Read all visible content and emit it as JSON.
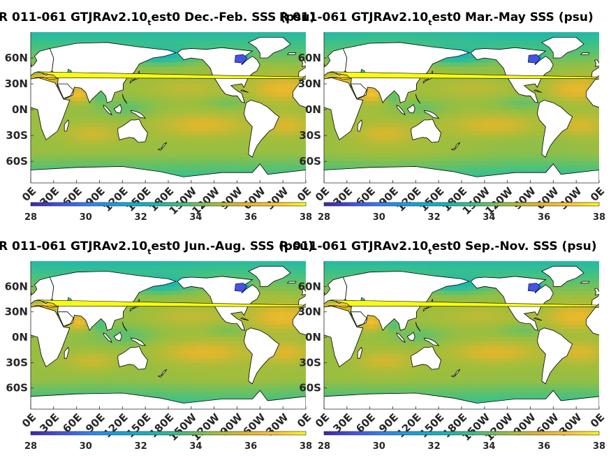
{
  "chart_data": [
    {
      "type": "heatmap",
      "title_left": "R 011-061 GTJRAv2.10",
      "title_sub": "t",
      "title_right": "est0 Dec.-Feb. SSS (psu)",
      "lat_ticks": [
        "60N",
        "30N",
        "0N",
        "30S",
        "60S"
      ],
      "lon_ticks": [
        "0E",
        "30E",
        "60E",
        "90E",
        "120E",
        "150E",
        "180E",
        "150W",
        "120W",
        "90W",
        "60W",
        "30W",
        "0E"
      ],
      "colorbar": {
        "ticks": [
          "28",
          "30",
          "32",
          "34",
          "36",
          "38"
        ],
        "range": [
          28,
          38
        ]
      },
      "season": "DJF"
    },
    {
      "type": "heatmap",
      "title_left": "R 011-061 GTJRAv2.10",
      "title_sub": "t",
      "title_right": "est0 Mar.-May SSS (psu)",
      "lat_ticks": [
        "60N",
        "30N",
        "0N",
        "30S",
        "60S"
      ],
      "lon_ticks": [
        "0E",
        "30E",
        "60E",
        "90E",
        "120E",
        "150E",
        "180E",
        "150W",
        "120W",
        "90W",
        "60W",
        "30W",
        "0E"
      ],
      "colorbar": {
        "ticks": [
          "28",
          "30",
          "32",
          "34",
          "36",
          "38"
        ],
        "range": [
          28,
          38
        ]
      },
      "season": "MAM"
    },
    {
      "type": "heatmap",
      "title_left": "R 011-061 GTJRAv2.10",
      "title_sub": "t",
      "title_right": "est0 Jun.-Aug. SSS (psu)",
      "lat_ticks": [
        "60N",
        "30N",
        "0N",
        "30S",
        "60S"
      ],
      "lon_ticks": [
        "0E",
        "30E",
        "60E",
        "90E",
        "120E",
        "150E",
        "180E",
        "150W",
        "120W",
        "90W",
        "60W",
        "30W",
        "0E"
      ],
      "colorbar": {
        "ticks": [
          "28",
          "30",
          "32",
          "34",
          "36",
          "38"
        ],
        "range": [
          28,
          38
        ]
      },
      "season": "JJA"
    },
    {
      "type": "heatmap",
      "title_left": "R 011-061 GTJRAv2.10",
      "title_sub": "t",
      "title_right": "est0 Sep.-Nov. SSS (psu)",
      "lat_ticks": [
        "60N",
        "30N",
        "0N",
        "30S",
        "60S"
      ],
      "lon_ticks": [
        "0E",
        "30E",
        "60E",
        "90E",
        "120E",
        "150E",
        "180E",
        "150W",
        "120W",
        "90W",
        "60W",
        "30W",
        "0E"
      ],
      "colorbar": {
        "ticks": [
          "28",
          "30",
          "32",
          "34",
          "36",
          "38"
        ],
        "range": [
          28,
          38
        ]
      },
      "season": "SON"
    }
  ],
  "colors": {
    "colormap": [
      "#3e26a8",
      "#4352ea",
      "#2e87f7",
      "#10a7d9",
      "#15b6b8",
      "#45c27f",
      "#9ebe3d",
      "#e0b72c",
      "#fec335",
      "#f9fb14"
    ],
    "land": "#ffffff",
    "ocean_mid": "#15b6b8"
  }
}
